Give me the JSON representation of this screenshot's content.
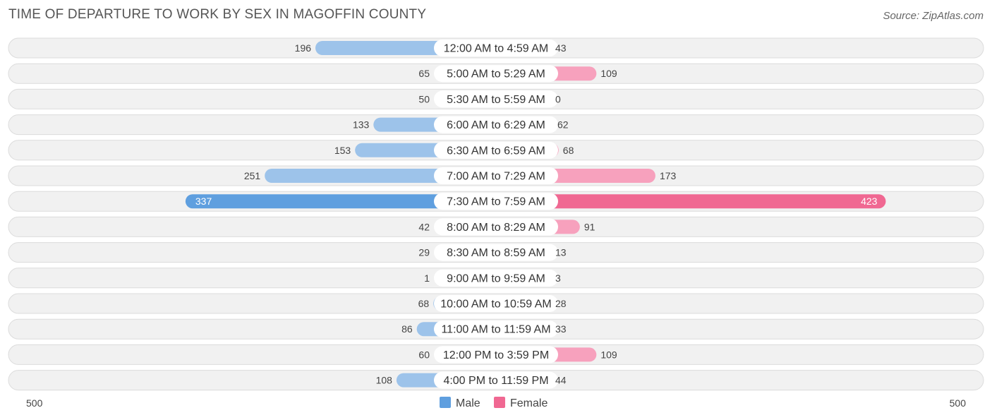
{
  "title": "TIME OF DEPARTURE TO WORK BY SEX IN MAGOFFIN COUNTY",
  "source": "Source: ZipAtlas.com",
  "colors": {
    "male": "#9dc3ea",
    "male_strong": "#5f9fdf",
    "female": "#f7a1bd",
    "female_strong": "#f06892",
    "row_bg": "#f1f1f1",
    "row_border": "#dcdcdc"
  },
  "chart_data": {
    "type": "bar",
    "orientation": "horizontal-diverging",
    "title": "TIME OF DEPARTURE TO WORK BY SEX IN MAGOFFIN COUNTY",
    "categories": [
      "12:00 AM to 4:59 AM",
      "5:00 AM to 5:29 AM",
      "5:30 AM to 5:59 AM",
      "6:00 AM to 6:29 AM",
      "6:30 AM to 6:59 AM",
      "7:00 AM to 7:29 AM",
      "7:30 AM to 7:59 AM",
      "8:00 AM to 8:29 AM",
      "8:30 AM to 8:59 AM",
      "9:00 AM to 9:59 AM",
      "10:00 AM to 10:59 AM",
      "11:00 AM to 11:59 AM",
      "12:00 PM to 3:59 PM",
      "4:00 PM to 11:59 PM"
    ],
    "series": [
      {
        "name": "Male",
        "values": [
          196,
          65,
          50,
          133,
          153,
          251,
          337,
          42,
          29,
          1,
          68,
          86,
          60,
          108
        ]
      },
      {
        "name": "Female",
        "values": [
          43,
          109,
          0,
          62,
          68,
          173,
          423,
          91,
          13,
          3,
          28,
          33,
          109,
          44
        ]
      }
    ],
    "axis_min_label": "500",
    "axis_max_label": "500",
    "xlim": [
      -500,
      500
    ],
    "legend": [
      "Male",
      "Female"
    ],
    "legend_position": "bottom-center"
  }
}
